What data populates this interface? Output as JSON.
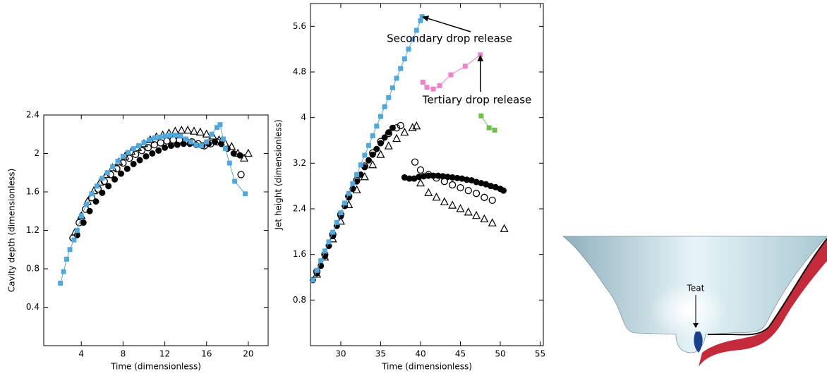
{
  "chart_data": [
    {
      "type": "scatter",
      "xlabel": "Time (dimensionless)",
      "ylabel": "Cavity depth (dimensionless)",
      "xlim": [
        0.4,
        21.9
      ],
      "ylim": [
        0,
        2.4
      ],
      "xticks": [
        4,
        8,
        12,
        16,
        20
      ],
      "yticks": [
        0.4,
        0.8,
        1.2,
        1.6,
        2,
        2.4
      ],
      "series": [
        {
          "marker": "circle",
          "color": "#000000",
          "line": false,
          "x": [
            3.6,
            4.2,
            4.8,
            5.4,
            6,
            6.6,
            7.2,
            7.8,
            8.4,
            9,
            9.6,
            10.2,
            10.8,
            11.4,
            12,
            12.6,
            13.2,
            13.8,
            14.4,
            15,
            15.6,
            16.2,
            16.8,
            17.4,
            18,
            18.6,
            19.2
          ],
          "y": [
            1.15,
            1.28,
            1.4,
            1.5,
            1.59,
            1.66,
            1.73,
            1.79,
            1.84,
            1.89,
            1.93,
            1.97,
            2.0,
            2.03,
            2.06,
            2.08,
            2.09,
            2.1,
            2.1,
            2.09,
            2.08,
            2.1,
            2.12,
            2.1,
            2.05,
            2.0,
            1.98
          ]
        },
        {
          "marker": "circle-open",
          "color": "#000000",
          "line": false,
          "x": [
            3.2,
            3.8,
            4.4,
            5,
            5.6,
            6.2,
            6.8,
            7.4,
            8,
            8.6,
            9.2,
            9.8,
            10.4,
            11,
            11.6,
            12.2,
            12.8,
            13.4,
            14,
            14.6,
            15.2,
            15.8,
            16.4,
            17,
            19.3
          ],
          "y": [
            1.12,
            1.28,
            1.42,
            1.54,
            1.63,
            1.71,
            1.78,
            1.84,
            1.9,
            1.95,
            1.99,
            2.03,
            2.06,
            2.09,
            2.11,
            2.13,
            2.14,
            2.14,
            2.13,
            2.12,
            2.1,
            2.08,
            2.1,
            2.12,
            1.78
          ]
        },
        {
          "marker": "triangle-open",
          "color": "#000000",
          "line": false,
          "x": [
            3.4,
            4,
            4.6,
            5.2,
            5.8,
            6.4,
            7,
            7.6,
            8.2,
            8.8,
            9.4,
            10,
            10.6,
            11.2,
            11.8,
            12.4,
            13,
            13.6,
            14.2,
            14.8,
            15.4,
            16,
            16.6,
            17.2,
            17.8,
            18.4,
            19,
            19.6,
            20
          ],
          "y": [
            1.18,
            1.35,
            1.5,
            1.61,
            1.7,
            1.78,
            1.85,
            1.91,
            1.97,
            2.02,
            2.06,
            2.1,
            2.14,
            2.17,
            2.19,
            2.21,
            2.23,
            2.24,
            2.24,
            2.23,
            2.22,
            2.2,
            2.18,
            2.14,
            2.1,
            2.07,
            2.0,
            1.95,
            2.0
          ]
        },
        {
          "marker": "square",
          "color": "#4fa8de",
          "line": true,
          "x": [
            2.0,
            2.3,
            2.6,
            2.9,
            3.3,
            3.6,
            4,
            4.5,
            5,
            5.5,
            6,
            6.5,
            7,
            7.5,
            8,
            8.5,
            9,
            9.5,
            10,
            10.5,
            11,
            11.5,
            12,
            12.5,
            13,
            13.5,
            14,
            14.5,
            15,
            15.5,
            16,
            16.5,
            17,
            17.3,
            17.6,
            17.8,
            18.2,
            18.7,
            19.7
          ],
          "y": [
            0.65,
            0.77,
            0.9,
            1.0,
            1.1,
            1.2,
            1.35,
            1.47,
            1.58,
            1.66,
            1.74,
            1.8,
            1.86,
            1.92,
            1.97,
            2.01,
            2.05,
            2.08,
            2.11,
            2.14,
            2.16,
            2.17,
            2.18,
            2.19,
            2.19,
            2.18,
            2.15,
            2.12,
            2.09,
            2.08,
            2.12,
            2.2,
            2.27,
            2.3,
            2.15,
            2.05,
            1.9,
            1.71,
            1.58
          ]
        }
      ]
    },
    {
      "type": "scatter",
      "xlabel": "Time (dimensionless)",
      "ylabel": "Jet height (dimensionless)",
      "xlim": [
        26.2,
        55.4
      ],
      "ylim": [
        0,
        6
      ],
      "xticks": [
        30,
        35,
        40,
        45,
        50,
        55
      ],
      "yticks": [
        0.8,
        1.6,
        2.4,
        3.2,
        4,
        4.8,
        5.6
      ],
      "annotations": [
        "Secondary drop release",
        "Tertiary drop release"
      ],
      "series": [
        {
          "marker": "circle",
          "color": "#000000",
          "line": false,
          "x": [
            26.5,
            27,
            27.5,
            28,
            28.5,
            29,
            29.5,
            30,
            30.5,
            31,
            31.5,
            32,
            32.5,
            33,
            33.5,
            34,
            34.5,
            35,
            35.5,
            36,
            36.5,
            38,
            38.6,
            39.2,
            39.8,
            40.4,
            41,
            41.6,
            42.2,
            42.8,
            43.4,
            44,
            44.6,
            45.2,
            45.8,
            46.4,
            47,
            47.6,
            48.2,
            48.8,
            49.4,
            50,
            50.4
          ],
          "y": [
            1.15,
            1.27,
            1.4,
            1.57,
            1.75,
            1.92,
            2.1,
            2.27,
            2.45,
            2.6,
            2.75,
            2.88,
            3.0,
            3.13,
            3.25,
            3.35,
            3.45,
            3.55,
            3.65,
            3.74,
            3.82,
            2.95,
            2.93,
            2.93,
            2.96,
            2.97,
            2.98,
            2.98,
            2.98,
            2.97,
            2.96,
            2.95,
            2.94,
            2.93,
            2.91,
            2.9,
            2.87,
            2.85,
            2.83,
            2.8,
            2.78,
            2.75,
            2.72
          ]
        },
        {
          "marker": "circle-open",
          "color": "#000000",
          "line": false,
          "x": [
            27,
            28,
            29,
            30,
            31,
            32,
            33,
            34,
            35,
            36,
            37,
            37.5,
            39.3,
            40,
            41,
            42,
            43,
            44,
            45,
            46,
            47,
            48,
            49
          ],
          "y": [
            1.3,
            1.6,
            1.95,
            2.3,
            2.62,
            2.9,
            3.15,
            3.38,
            3.58,
            3.72,
            3.82,
            3.86,
            3.22,
            3.08,
            3.0,
            2.94,
            2.88,
            2.82,
            2.77,
            2.72,
            2.67,
            2.6,
            2.55
          ]
        },
        {
          "marker": "triangle-open",
          "color": "#000000",
          "line": false,
          "x": [
            27,
            28,
            29,
            30,
            31,
            32,
            33,
            34,
            35,
            36,
            37,
            38,
            39,
            39.5,
            40,
            41,
            42,
            43,
            44,
            45,
            46,
            47,
            48,
            49,
            50.5
          ],
          "y": [
            1.25,
            1.55,
            1.87,
            2.18,
            2.47,
            2.73,
            2.96,
            3.17,
            3.35,
            3.5,
            3.63,
            3.74,
            3.82,
            3.85,
            2.85,
            2.68,
            2.6,
            2.52,
            2.46,
            2.4,
            2.34,
            2.28,
            2.22,
            2.15,
            2.05
          ]
        },
        {
          "marker": "square",
          "color": "#4fa8de",
          "line": true,
          "x": [
            26.5,
            27,
            27.5,
            28,
            28.5,
            29,
            29.5,
            30,
            30.5,
            31,
            31.5,
            32,
            32.5,
            33,
            33.5,
            34,
            34.5,
            35,
            35.5,
            36,
            36.5,
            37,
            37.5,
            38,
            38.5,
            39,
            39.5,
            40,
            40.2
          ],
          "y": [
            1.15,
            1.32,
            1.49,
            1.66,
            1.82,
            1.99,
            2.16,
            2.33,
            2.5,
            2.67,
            2.84,
            3.0,
            3.17,
            3.34,
            3.51,
            3.68,
            3.85,
            4.02,
            4.19,
            4.35,
            4.52,
            4.69,
            4.86,
            5.03,
            5.2,
            5.37,
            5.53,
            5.7,
            5.77
          ]
        },
        {
          "marker": "square",
          "color": "#ee82c8",
          "line": true,
          "x": [
            40.3,
            40.8,
            41.6,
            42.4,
            43.8,
            45.6,
            47.5
          ],
          "y": [
            4.62,
            4.53,
            4.5,
            4.56,
            4.75,
            4.9,
            5.1
          ]
        },
        {
          "marker": "square",
          "color": "#6cc24a",
          "line": true,
          "x": [
            47.6,
            48.6,
            49.3
          ],
          "y": [
            4.03,
            3.82,
            3.78
          ]
        }
      ]
    }
  ],
  "diagram": {
    "label": "Teat"
  }
}
